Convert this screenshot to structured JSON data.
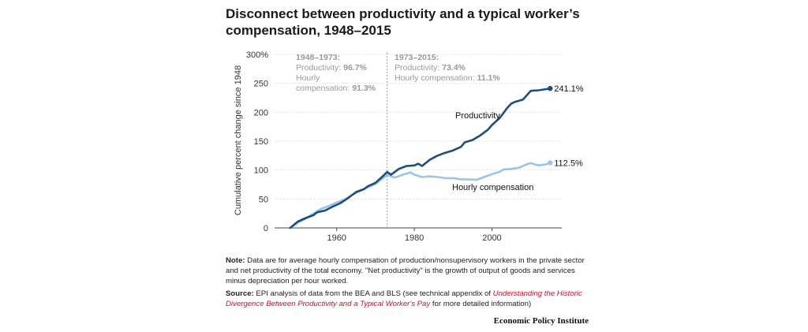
{
  "title": "Disconnect between productivity and a typical worker’s compensation, 1948–2015",
  "chart_data": {
    "type": "line",
    "title": "Disconnect between productivity and a typical worker’s compensation, 1948–2015",
    "ylabel": "Cumulative percent change since 1948",
    "xlabel": "",
    "xlim": [
      1944,
      2018
    ],
    "ylim": [
      0,
      300
    ],
    "x_ticks": [
      "1960",
      "1980",
      "2000"
    ],
    "y_ticks": [
      "0",
      "50",
      "100",
      "150",
      "200",
      "250",
      "300%"
    ],
    "y_tick_values": [
      0,
      50,
      100,
      150,
      200,
      250,
      300
    ],
    "grid": "horizontal",
    "divider_year": 1973,
    "series": [
      {
        "name": "Productivity",
        "color": "#1f4e79",
        "end_label": "241.1%",
        "points": [
          [
            1948,
            0
          ],
          [
            1950,
            11
          ],
          [
            1952,
            17
          ],
          [
            1954,
            22
          ],
          [
            1955,
            27
          ],
          [
            1957,
            30
          ],
          [
            1959,
            37
          ],
          [
            1961,
            43
          ],
          [
            1963,
            52
          ],
          [
            1965,
            62
          ],
          [
            1967,
            67
          ],
          [
            1968,
            72
          ],
          [
            1970,
            78
          ],
          [
            1972,
            90
          ],
          [
            1973,
            96.7
          ],
          [
            1974,
            92
          ],
          [
            1976,
            102
          ],
          [
            1978,
            107
          ],
          [
            1980,
            108
          ],
          [
            1981,
            111
          ],
          [
            1982,
            107
          ],
          [
            1984,
            118
          ],
          [
            1986,
            125
          ],
          [
            1988,
            130
          ],
          [
            1990,
            134
          ],
          [
            1992,
            140
          ],
          [
            1993,
            148
          ],
          [
            1995,
            152
          ],
          [
            1997,
            160
          ],
          [
            1999,
            170
          ],
          [
            2000,
            178
          ],
          [
            2002,
            190
          ],
          [
            2004,
            208
          ],
          [
            2005,
            215
          ],
          [
            2006,
            218
          ],
          [
            2008,
            222
          ],
          [
            2010,
            237
          ],
          [
            2012,
            238
          ],
          [
            2014,
            240
          ],
          [
            2015,
            241.1
          ]
        ]
      },
      {
        "name": "Hourly compensation",
        "color": "#9dc3e6",
        "end_label": "112.5%",
        "points": [
          [
            1948,
            0
          ],
          [
            1950,
            9
          ],
          [
            1952,
            16
          ],
          [
            1954,
            25
          ],
          [
            1956,
            33
          ],
          [
            1958,
            38
          ],
          [
            1960,
            44
          ],
          [
            1962,
            49
          ],
          [
            1964,
            57
          ],
          [
            1966,
            64
          ],
          [
            1968,
            70
          ],
          [
            1970,
            76
          ],
          [
            1972,
            86
          ],
          [
            1973,
            91.3
          ],
          [
            1975,
            87
          ],
          [
            1977,
            92
          ],
          [
            1979,
            96
          ],
          [
            1980,
            92
          ],
          [
            1982,
            88
          ],
          [
            1984,
            89
          ],
          [
            1986,
            88
          ],
          [
            1988,
            86
          ],
          [
            1990,
            86
          ],
          [
            1992,
            84
          ],
          [
            1994,
            84
          ],
          [
            1996,
            83
          ],
          [
            1998,
            88
          ],
          [
            2000,
            93
          ],
          [
            2002,
            97
          ],
          [
            2003,
            101
          ],
          [
            2005,
            102
          ],
          [
            2007,
            104
          ],
          [
            2009,
            110
          ],
          [
            2010,
            112
          ],
          [
            2012,
            108
          ],
          [
            2014,
            110
          ],
          [
            2015,
            112.5
          ]
        ]
      }
    ]
  },
  "annotations": {
    "left": {
      "head": "1948–1973:",
      "prod_label": "Productivity: ",
      "prod_value": "96.7%",
      "comp_label_1": "Hourly",
      "comp_label_2": "compensation: ",
      "comp_value": "91.3%"
    },
    "right": {
      "head": "1973–2015:",
      "prod_label": "Productivity: ",
      "prod_value": "73.4%",
      "comp_label": "Hourly compensation: ",
      "comp_value": "11.1%"
    }
  },
  "notes": {
    "note_label": "Note:",
    "note_text": " Data are for average hourly compensation of production/nonsupervisory workers in the private sector and net productivity of the total economy. \"Net productivity\" is the growth of output of goods and services minus depreciation per hour worked.",
    "source_label": "Source:",
    "source_text_1": " EPI analysis of data from the BEA and BLS (see technical appendix of ",
    "source_link": "Understanding the Historic Divergence Between Productivity and a Typical Worker's Pay",
    "source_text_2": " for more detailed information)"
  },
  "credit": "Economic Policy Institute",
  "colors": {
    "productivity": "#1f4e79",
    "compensation": "#9dc3e6",
    "link": "#c8102e",
    "annotation": "#999999"
  }
}
